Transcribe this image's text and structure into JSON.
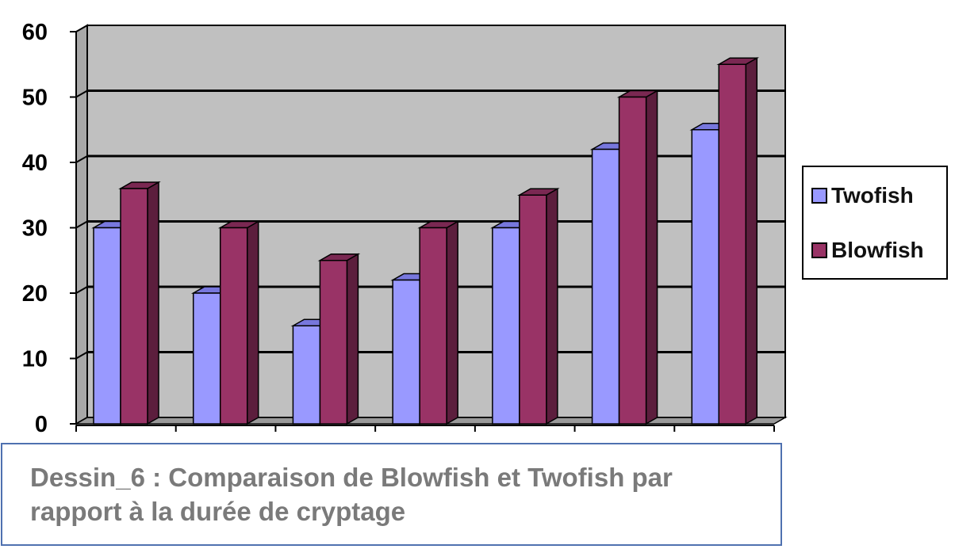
{
  "colors": {
    "plot_background": "#c0c0c0",
    "gridline": "#000000",
    "twofish_front": "#9999ff",
    "twofish_top": "#7777dd",
    "twofish_side": "#5a5ab8",
    "blowfish_front": "#993366",
    "blowfish_top": "#7a2852",
    "blowfish_side": "#5c1e3d",
    "caption_border": "#4f71b0",
    "caption_text": "#7a7a7a"
  },
  "chart_data": {
    "type": "bar",
    "title": "",
    "xlabel": "",
    "ylabel": "",
    "categories": [
      "",
      "",
      "",
      "",
      "",
      "",
      ""
    ],
    "series": [
      {
        "name": "Twofish",
        "values": [
          30,
          20,
          15,
          22,
          30,
          42,
          45
        ]
      },
      {
        "name": "Blowfish",
        "values": [
          36,
          30,
          25,
          30,
          35,
          50,
          55
        ]
      }
    ],
    "ylim": [
      0,
      60
    ],
    "yticks": [
      "0",
      "10",
      "20",
      "30",
      "40",
      "50",
      "60"
    ],
    "grid": true,
    "three_d": true,
    "legend_position": "right"
  },
  "caption": {
    "text": "Dessin_6 : Comparaison de Blowfish et Twofish par rapport à la durée de cryptage"
  }
}
